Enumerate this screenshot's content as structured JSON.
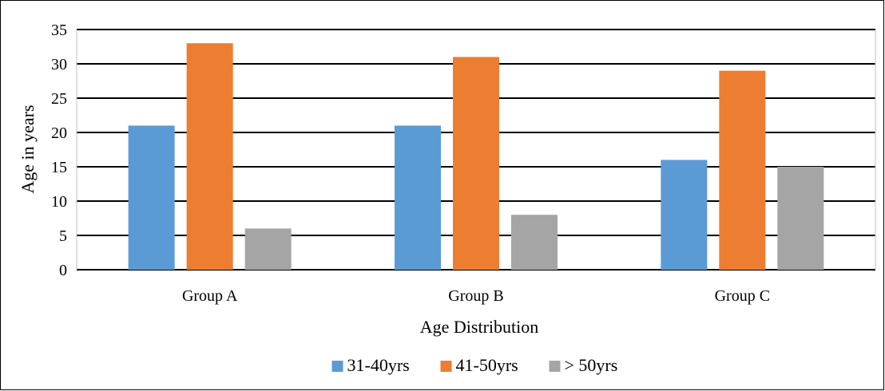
{
  "chart_data": {
    "type": "bar",
    "title": "",
    "xlabel": "Age Distribution",
    "ylabel": "Age in years",
    "categories": [
      "Group A",
      "Group B",
      "Group C"
    ],
    "series": [
      {
        "name": "31-40yrs",
        "values": [
          21,
          21,
          16
        ],
        "color": "#5B9BD5"
      },
      {
        "name": "41-50yrs",
        "values": [
          33,
          31,
          29
        ],
        "color": "#ED7D31"
      },
      {
        "name": "> 50yrs",
        "values": [
          6,
          8,
          15
        ],
        "color": "#A5A5A5"
      }
    ],
    "ylim": [
      0,
      35
    ],
    "yticks": [
      0,
      5,
      10,
      15,
      20,
      25,
      30,
      35
    ],
    "grid": true,
    "legend_position": "bottom"
  }
}
